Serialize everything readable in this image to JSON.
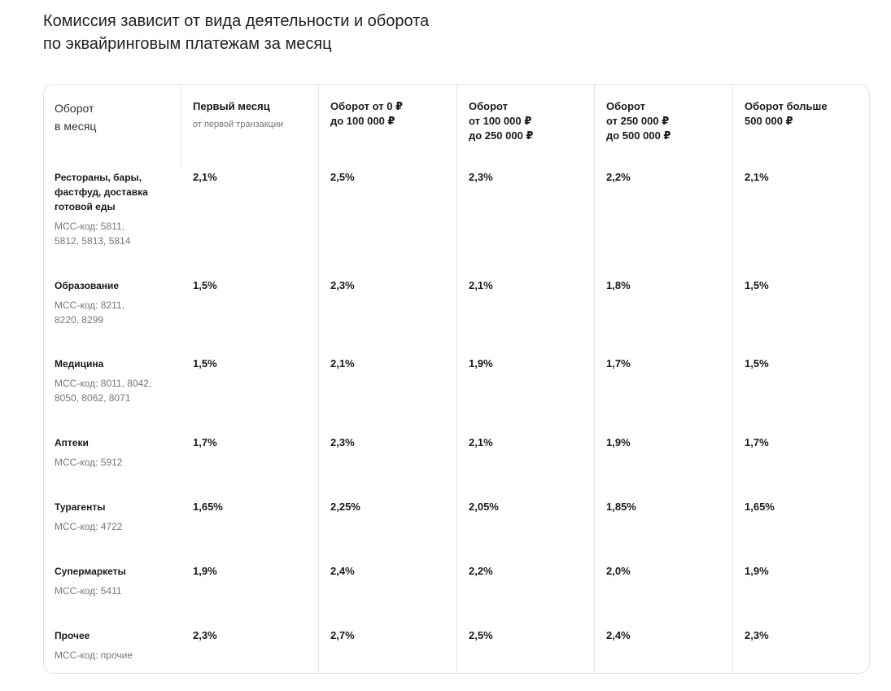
{
  "heading": {
    "line1": "Комиссия зависит от вида деятельности и оборота",
    "line2": "по эквайринговым платежам за месяц"
  },
  "table": {
    "corner": {
      "line1": "Оборот",
      "line2": "в месяц"
    },
    "columns": [
      {
        "lines": [
          "Первый месяц"
        ],
        "sub": "от первой транзакции"
      },
      {
        "lines": [
          "Оборот от 0 ₽",
          "до 100 000 ₽"
        ]
      },
      {
        "lines": [
          "Оборот",
          "от 100 000 ₽",
          "до 250 000 ₽"
        ]
      },
      {
        "lines": [
          "Оборот",
          "от 250 000 ₽",
          "до 500 000 ₽"
        ]
      },
      {
        "lines": [
          "Оборот больше",
          "500 000 ₽"
        ]
      }
    ],
    "rows": [
      {
        "name_lines": [
          "Рестораны, бары,",
          "фастфуд, доставка",
          "готовой еды"
        ],
        "mcc_lines": [
          "МСС-код: 5811,",
          "5812, 5813, 5814"
        ],
        "values": [
          "2,1%",
          "2,5%",
          "2,3%",
          "2,2%",
          "2,1%"
        ]
      },
      {
        "name_lines": [
          "Образование"
        ],
        "mcc_lines": [
          "МСС-код: 8211,",
          "8220, 8299"
        ],
        "values": [
          "1,5%",
          "2,3%",
          "2,1%",
          "1,8%",
          "1,5%"
        ]
      },
      {
        "name_lines": [
          "Медицина"
        ],
        "mcc_lines": [
          "МСС-код: 8011, 8042,",
          "8050, 8062, 8071"
        ],
        "values": [
          "1,5%",
          "2,1%",
          "1,9%",
          "1,7%",
          "1,5%"
        ]
      },
      {
        "name_lines": [
          "Аптеки"
        ],
        "mcc_lines": [
          "МСС-код: 5912"
        ],
        "values": [
          "1,7%",
          "2,3%",
          "2,1%",
          "1,9%",
          "1,7%"
        ]
      },
      {
        "name_lines": [
          "Турагенты"
        ],
        "mcc_lines": [
          "МСС-код: 4722"
        ],
        "values": [
          "1,65%",
          "2,25%",
          "2,05%",
          "1,85%",
          "1,65%"
        ]
      },
      {
        "name_lines": [
          "Супермаркеты"
        ],
        "mcc_lines": [
          "МСС-код: 5411"
        ],
        "values": [
          "1,9%",
          "2,4%",
          "2,2%",
          "2,0%",
          "1,9%"
        ]
      },
      {
        "name_lines": [
          "Прочее"
        ],
        "mcc_lines": [
          "МСС-код: прочие"
        ],
        "values": [
          "2,3%",
          "2,7%",
          "2,5%",
          "2,4%",
          "2,3%"
        ]
      }
    ]
  }
}
